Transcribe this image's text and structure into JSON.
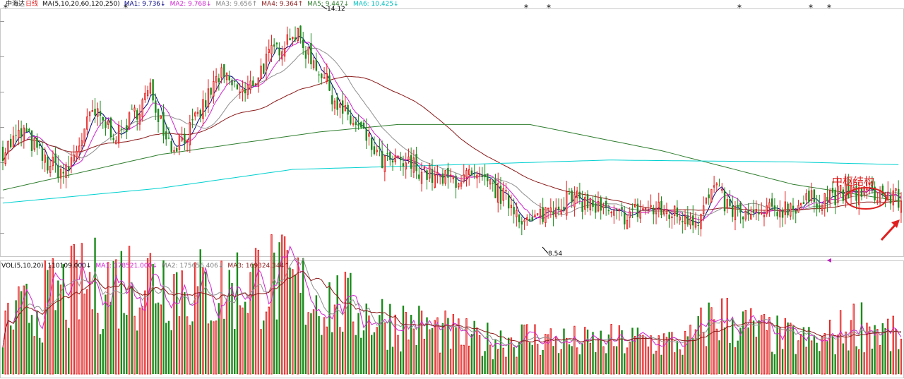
{
  "header": {
    "stock_name": "中海达",
    "period": "日线",
    "ma_param": "MA(5,10,20,60,120,250)",
    "ma1": "MA1: 9.736↓",
    "ma2": "MA2: 9.768↓",
    "ma3": "MA3: 9.656↑",
    "ma4": "MA4: 9.364↑",
    "ma5": "MA5: 9.447↓",
    "ma6": "MA6: 10.425↓"
  },
  "vol_header": {
    "param": "VOL(5,10,20)",
    "value": "110109.000↓",
    "ma1": "MA1: 178521.000↓",
    "ma2": "MA2: 175656.406↓",
    "ma3": "MA3: 169324.344↑"
  },
  "annotations": {
    "high_label": "14.12",
    "low_label": "8.54",
    "zhongshu": "中枢结构"
  },
  "colors": {
    "up": "#e41f1f",
    "down": "#1a8a1a",
    "ma1": "#000080",
    "ma2": "#d020d0",
    "ma3": "#909090",
    "ma4": "#8b1a1a",
    "ma5": "#2e7d2e",
    "ma6": "#00d0d0",
    "annotation": "#e02020"
  },
  "chart_data": {
    "type": "candlestick",
    "title": "中海达 日线",
    "price_range": [
      8.0,
      14.6
    ],
    "high": 14.12,
    "low": 8.54,
    "last_close": 9.45,
    "keypoints": [
      [
        0,
        10.8
      ],
      [
        8,
        11.3
      ],
      [
        16,
        10.5
      ],
      [
        24,
        10.2
      ],
      [
        34,
        11.8
      ],
      [
        44,
        11.2
      ],
      [
        56,
        12.4
      ],
      [
        64,
        10.9
      ],
      [
        72,
        11.4
      ],
      [
        82,
        12.8
      ],
      [
        92,
        12.3
      ],
      [
        100,
        13.2
      ],
      [
        110,
        14.0
      ],
      [
        120,
        13.0
      ],
      [
        128,
        11.9
      ],
      [
        136,
        11.3
      ],
      [
        144,
        10.5
      ],
      [
        156,
        10.4
      ],
      [
        166,
        10.0
      ],
      [
        176,
        10.1
      ],
      [
        186,
        9.8
      ],
      [
        194,
        9.3
      ],
      [
        200,
        8.8
      ],
      [
        206,
        9.2
      ],
      [
        214,
        9.5
      ],
      [
        222,
        9.4
      ],
      [
        232,
        9.0
      ],
      [
        244,
        9.25
      ],
      [
        256,
        9.1
      ],
      [
        264,
        9.0
      ],
      [
        270,
        9.8
      ],
      [
        276,
        9.2
      ],
      [
        284,
        9.0
      ],
      [
        298,
        9.3
      ],
      [
        314,
        9.6
      ],
      [
        328,
        9.7
      ],
      [
        336,
        9.6
      ],
      [
        341,
        9.45
      ]
    ],
    "ma_periods": [
      5,
      10,
      20,
      60,
      120,
      250
    ],
    "ma_last": [
      9.736,
      9.768,
      9.656,
      9.364,
      9.447,
      10.425
    ],
    "ma120_path": [
      [
        0,
        9.75
      ],
      [
        60,
        10.7
      ],
      [
        120,
        11.3
      ],
      [
        150,
        11.5
      ],
      [
        200,
        11.5
      ],
      [
        250,
        10.8
      ],
      [
        300,
        9.9
      ],
      [
        341,
        9.45
      ]
    ],
    "ma250_path": [
      [
        0,
        9.4
      ],
      [
        60,
        9.8
      ],
      [
        110,
        10.3
      ],
      [
        160,
        10.4
      ],
      [
        230,
        10.55
      ],
      [
        300,
        10.5
      ],
      [
        341,
        10.425
      ]
    ],
    "volume": {
      "last": 110109,
      "ma": [
        178521.0,
        175656.406,
        169324.344
      ],
      "keypoints": [
        [
          0,
          160000
        ],
        [
          20,
          260000
        ],
        [
          40,
          300000
        ],
        [
          60,
          320000
        ],
        [
          80,
          260000
        ],
        [
          100,
          320000
        ],
        [
          120,
          250000
        ],
        [
          140,
          190000
        ],
        [
          160,
          150000
        ],
        [
          180,
          110000
        ],
        [
          200,
          120000
        ],
        [
          220,
          100000
        ],
        [
          240,
          110000
        ],
        [
          260,
          100000
        ],
        [
          270,
          190000
        ],
        [
          290,
          130000
        ],
        [
          310,
          100000
        ],
        [
          325,
          170000
        ],
        [
          341,
          110000
        ]
      ]
    }
  }
}
